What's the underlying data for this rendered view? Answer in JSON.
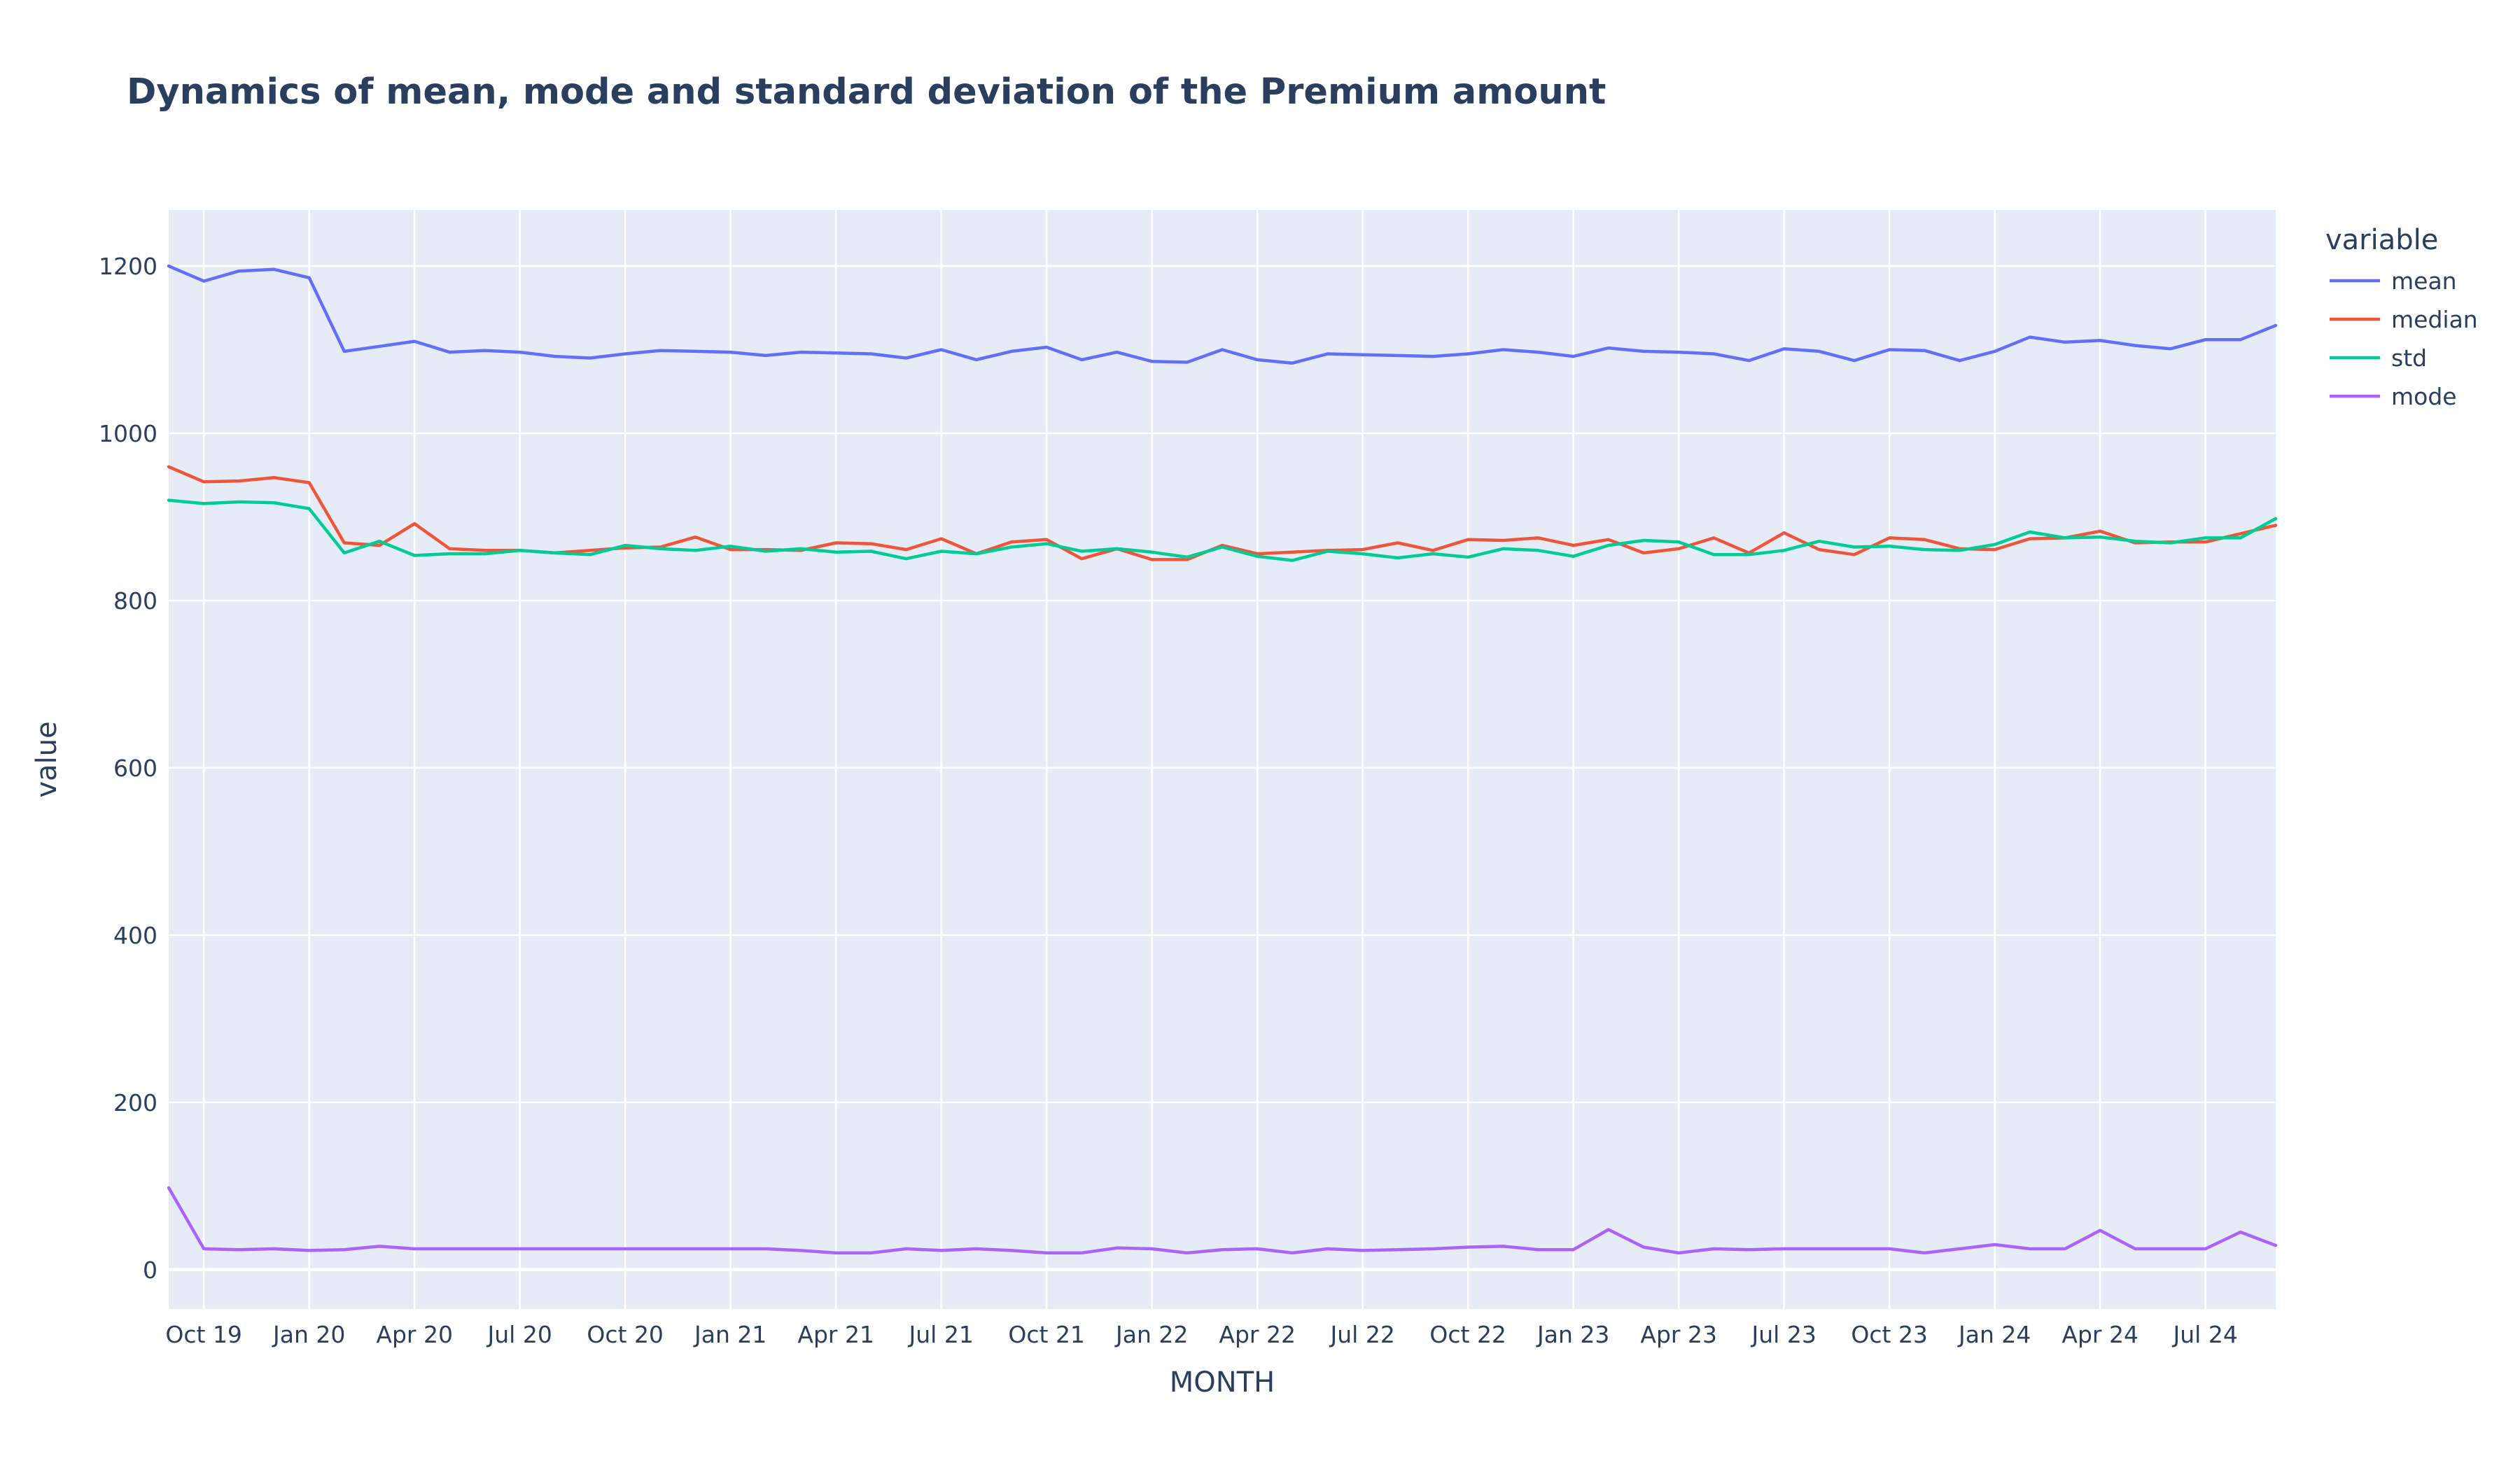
{
  "colors": {
    "background": "#ffffff",
    "plot_background": "#e5ecf6",
    "grid": "#ffffff",
    "text": "#2a3f5f"
  },
  "chart_data": {
    "type": "line",
    "title": "Dynamics of mean, mode and standard deviation of the Premium amount",
    "xlabel": "MONTH",
    "ylabel": "value",
    "x_start": "2019-09",
    "x": [
      "2019-09",
      "2019-10",
      "2019-11",
      "2019-12",
      "2020-01",
      "2020-02",
      "2020-03",
      "2020-04",
      "2020-05",
      "2020-06",
      "2020-07",
      "2020-08",
      "2020-09",
      "2020-10",
      "2020-11",
      "2020-12",
      "2021-01",
      "2021-02",
      "2021-03",
      "2021-04",
      "2021-05",
      "2021-06",
      "2021-07",
      "2021-08",
      "2021-09",
      "2021-10",
      "2021-11",
      "2021-12",
      "2022-01",
      "2022-02",
      "2022-03",
      "2022-04",
      "2022-05",
      "2022-06",
      "2022-07",
      "2022-08",
      "2022-09",
      "2022-10",
      "2022-11",
      "2022-12",
      "2023-01",
      "2023-02",
      "2023-03",
      "2023-04",
      "2023-05",
      "2023-06",
      "2023-07",
      "2023-08",
      "2023-09",
      "2023-10",
      "2023-11",
      "2023-12",
      "2024-01",
      "2024-02",
      "2024-03",
      "2024-04",
      "2024-05",
      "2024-06",
      "2024-07",
      "2024-08",
      "2024-09"
    ],
    "x_ticks": [
      "Oct 19",
      "Jan 20",
      "Apr 20",
      "Jul 20",
      "Oct 20",
      "Jan 21",
      "Apr 21",
      "Jul 21",
      "Oct 21",
      "Jan 22",
      "Apr 22",
      "Jul 22",
      "Oct 22",
      "Jan 23",
      "Apr 23",
      "Jul 23",
      "Oct 23",
      "Jan 24",
      "Apr 24",
      "Jul 24"
    ],
    "x_tick_index": [
      1,
      4,
      7,
      10,
      13,
      16,
      19,
      22,
      25,
      28,
      31,
      34,
      37,
      40,
      43,
      46,
      49,
      52,
      55,
      58
    ],
    "y_ticks": [
      0,
      200,
      400,
      600,
      800,
      1000,
      1200
    ],
    "ylim": [
      -47,
      1267
    ],
    "legend_title": "variable",
    "legend_position": "top-right",
    "grid": true,
    "series": [
      {
        "name": "mean",
        "color": "#636efa",
        "values": [
          1200,
          1182,
          1194,
          1196,
          1186,
          1098,
          1104,
          1110,
          1097,
          1099,
          1097,
          1092,
          1090,
          1095,
          1099,
          1098,
          1097,
          1093,
          1097,
          1096,
          1095,
          1090,
          1100,
          1088,
          1098,
          1103,
          1088,
          1097,
          1086,
          1085,
          1100,
          1088,
          1084,
          1095,
          1094,
          1093,
          1092,
          1095,
          1100,
          1097,
          1092,
          1102,
          1098,
          1097,
          1095,
          1087,
          1101,
          1098,
          1087,
          1100,
          1099,
          1087,
          1098,
          1115,
          1109,
          1111,
          1105,
          1101,
          1112,
          1112,
          1129
        ]
      },
      {
        "name": "median",
        "color": "#ef553b",
        "values": [
          960,
          942,
          943,
          947,
          941,
          869,
          866,
          892,
          862,
          860,
          860,
          857,
          860,
          863,
          864,
          876,
          861,
          861,
          860,
          869,
          868,
          861,
          874,
          856,
          870,
          873,
          850,
          862,
          849,
          849,
          866,
          856,
          858,
          860,
          861,
          869,
          860,
          873,
          872,
          875,
          866,
          873,
          857,
          862,
          875,
          857,
          881,
          861,
          855,
          875,
          873,
          862,
          861,
          874,
          875,
          883,
          869,
          870,
          870,
          880,
          890
        ]
      },
      {
        "name": "std",
        "color": "#00cc96",
        "values": [
          920,
          916,
          918,
          917,
          910,
          857,
          871,
          854,
          856,
          856,
          860,
          857,
          855,
          866,
          862,
          860,
          865,
          859,
          862,
          858,
          859,
          850,
          859,
          856,
          864,
          868,
          859,
          862,
          858,
          852,
          864,
          853,
          848,
          859,
          856,
          851,
          856,
          852,
          862,
          860,
          853,
          866,
          872,
          870,
          855,
          855,
          860,
          871,
          864,
          865,
          861,
          860,
          867,
          882,
          875,
          876,
          871,
          869,
          875,
          875,
          898
        ]
      },
      {
        "name": "mode",
        "color": "#ab63fa",
        "values": [
          98,
          25,
          24,
          25,
          23,
          24,
          28,
          25,
          25,
          25,
          25,
          25,
          25,
          25,
          25,
          25,
          25,
          25,
          23,
          20,
          20,
          25,
          23,
          25,
          23,
          20,
          20,
          26,
          25,
          20,
          24,
          25,
          20,
          25,
          23,
          24,
          25,
          27,
          28,
          24,
          24,
          48,
          27,
          20,
          25,
          24,
          25,
          25,
          25,
          25,
          20,
          25,
          30,
          25,
          25,
          47,
          25,
          25,
          25,
          45,
          29
        ]
      }
    ]
  }
}
